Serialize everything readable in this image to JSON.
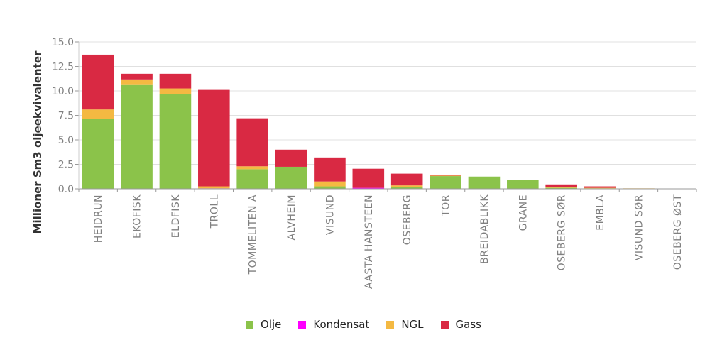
{
  "chart_data": {
    "type": "bar",
    "stacked": true,
    "ylabel": "Millioner Sm3 oljeekvivalenter",
    "ylim": [
      0,
      15
    ],
    "yticks": [
      "0.0",
      "2.5",
      "5.0",
      "7.5",
      "10.0",
      "12.5",
      "15.0"
    ],
    "grid": true,
    "legend_position": "bottom-center",
    "categories": [
      "HEIDRUN",
      "EKOFISK",
      "ELDFISK",
      "TROLL",
      "TOMMELITEN A",
      "ALVHEIM",
      "VISUND",
      "AASTA HANSTEEN",
      "OSEBERG",
      "TOR",
      "BREIDABLIKK",
      "GRANE",
      "OSEBERG SØR",
      "EMBLA",
      "VISUND SØR",
      "OSEBERG ØST"
    ],
    "series": [
      {
        "name": "Olje",
        "color": "#8bc34a",
        "values": [
          7.15,
          10.6,
          9.7,
          0.0,
          2.0,
          2.25,
          0.25,
          0.0,
          0.2,
          1.3,
          1.25,
          0.9,
          0.1,
          0.05,
          0.0,
          0.0
        ]
      },
      {
        "name": "Kondensat",
        "color": "#ff00ff",
        "values": [
          0.0,
          0.0,
          0.0,
          0.05,
          0.0,
          0.0,
          0.0,
          0.1,
          0.0,
          0.0,
          0.0,
          0.0,
          0.0,
          0.0,
          0.0,
          0.0
        ]
      },
      {
        "name": "NGL",
        "color": "#f4b942",
        "values": [
          0.95,
          0.5,
          0.55,
          0.2,
          0.3,
          0.0,
          0.5,
          0.0,
          0.15,
          0.05,
          0.0,
          0.0,
          0.1,
          0.05,
          0.05,
          0.0
        ]
      },
      {
        "name": "Gass",
        "color": "#d92943",
        "values": [
          5.6,
          0.65,
          1.5,
          9.85,
          4.9,
          1.75,
          2.45,
          1.95,
          1.2,
          0.1,
          0.0,
          0.0,
          0.25,
          0.15,
          0.0,
          0.0
        ]
      }
    ]
  }
}
